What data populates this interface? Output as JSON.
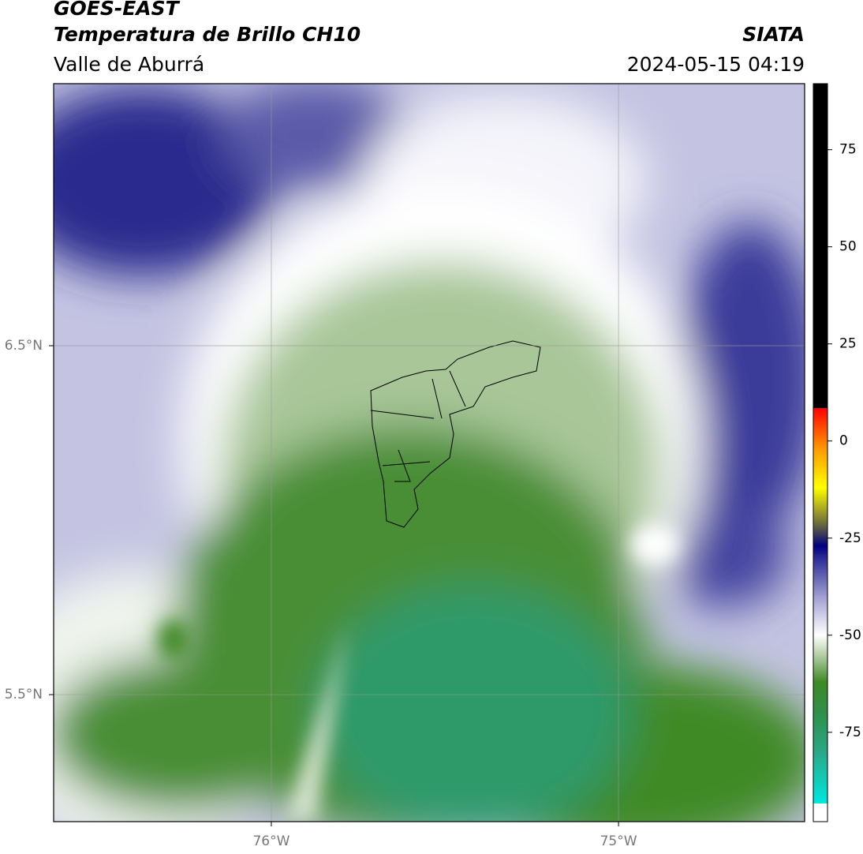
{
  "title": "GOES-EAST",
  "subtitle": "Temperatura de Brillo CH10",
  "region": "Valle de Aburrá",
  "source": "SIATA",
  "timestamp": "2024-05-15 04:19",
  "map": {
    "xlim": [
      -76.627,
      -74.464
    ],
    "ylim": [
      5.136,
      7.251
    ],
    "xticks": [
      {
        "value": -76,
        "label": "76°W"
      },
      {
        "value": -75,
        "label": "75°W"
      }
    ],
    "yticks": [
      {
        "value": 6.5,
        "label": "6.5°N"
      },
      {
        "value": 5.5,
        "label": "5.5°N"
      }
    ],
    "grid": true
  },
  "colorbar": {
    "lim": [
      -98,
      92
    ],
    "ticks": [
      75,
      50,
      25,
      0,
      -25,
      -50,
      -75
    ],
    "stops": [
      {
        "value": -98,
        "color": "#ffffff"
      },
      {
        "value": -93.3,
        "color": "#ffffff"
      },
      {
        "value": -93.3,
        "color": "#00e8e0"
      },
      {
        "value": -80,
        "color": "#2aa886"
      },
      {
        "value": -70,
        "color": "#2f8f4a"
      },
      {
        "value": -62,
        "color": "#3f8a25"
      },
      {
        "value": -55,
        "color": "#b6cfa8"
      },
      {
        "value": -50,
        "color": "#ffffff"
      },
      {
        "value": -40,
        "color": "#9e9ed2"
      },
      {
        "value": -30,
        "color": "#2a2a96"
      },
      {
        "value": -27,
        "color": "#000080"
      },
      {
        "value": -22,
        "color": "#606040"
      },
      {
        "value": -12,
        "color": "#ffff00"
      },
      {
        "value": -2,
        "color": "#ff9900"
      },
      {
        "value": 8.5,
        "color": "#ff0000"
      },
      {
        "value": 8.5,
        "color": "#000000"
      },
      {
        "value": 92,
        "color": "#000000"
      }
    ]
  }
}
